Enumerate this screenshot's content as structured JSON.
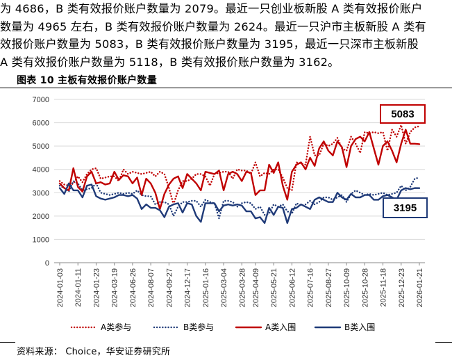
{
  "paragraph": {
    "lines": [
      "为 4686，B 类有效报价账户数量为 2079。最近一只创业板新股 A 类有效报价账户",
      "数量为 4965 左右，B 类有效报价账户数量为 2624。最近一只沪市主板新股 A 类有",
      "效报价账户数量为 5083，B 类有效报价账户数量为 3195，最近一只深市主板新股",
      "A 类有效报价账户数量为 5118，B 类有效报价账户数量为 3162。"
    ]
  },
  "figure": {
    "title": "图表 10 主板有效报价账户数量",
    "source": "资料来源： Choice，华安证券研究所"
  },
  "chart_data": {
    "type": "line",
    "ylim": [
      0,
      7000
    ],
    "yticks": [
      0,
      1000,
      2000,
      3000,
      4000,
      5000,
      6000,
      7000
    ],
    "xtick_labels": [
      "2024-01-03",
      "2024-01-11",
      "2024-01-23",
      "2024-03-19",
      "2024-06-26",
      "2024-08-07",
      "2024-09-27",
      "2024-12-17",
      "2025-01-16",
      "2025-03-04",
      "2025-03-28",
      "2025-04-09",
      "2025-05-21",
      "2025-06-12",
      "2025-07-16",
      "2025-08-27",
      "2025-10-09",
      "2025-10-28",
      "2025-11-18",
      "2025-12-23",
      "2026-01-21"
    ],
    "point_count": 80,
    "legend": [
      "A类参与",
      "B类参与",
      "A类入围",
      "B类入围"
    ],
    "legend_position": "bottom",
    "colors": {
      "a_series": "#C00000",
      "b_series": "#1F3A78"
    },
    "series": [
      {
        "name": "A类参与",
        "style": "dotted",
        "color": "#C00000",
        "values": [
          3500,
          3350,
          3300,
          3400,
          3700,
          3450,
          3800,
          4000,
          4050,
          3600,
          3650,
          3700,
          3700,
          3500,
          4000,
          3800,
          3900,
          3850,
          3800,
          3850,
          3900,
          3700,
          3900,
          3800,
          3200,
          2500,
          3100,
          3500,
          3500,
          3600,
          3800,
          3800,
          3700,
          3300,
          3800,
          3850,
          3900,
          3900,
          3600,
          4000,
          3950,
          3950,
          3800,
          4300,
          3700,
          3850,
          3800,
          4000,
          4000,
          3650,
          3200,
          3100,
          4300,
          4250,
          4200,
          5400,
          4600,
          4600,
          5100,
          5000,
          5100,
          5350,
          4900,
          4800,
          5400,
          5100,
          4700,
          5600,
          5550,
          5600,
          5550,
          5600,
          4800,
          5700,
          5400,
          5900,
          5100,
          5600,
          5800,
          5850
        ]
      },
      {
        "name": "B类参与",
        "style": "dotted",
        "color": "#1F3A78",
        "values": [
          3300,
          3200,
          3050,
          3500,
          3400,
          3100,
          3150,
          3200,
          3400,
          3000,
          2950,
          2900,
          2950,
          3000,
          2950,
          3000,
          2950,
          3100,
          2900,
          2850,
          2850,
          2500,
          2600,
          2600,
          2500,
          2000,
          2400,
          2600,
          2600,
          2650,
          2650,
          2400,
          2700,
          2600,
          2550,
          1900,
          2650,
          2650,
          2600,
          2400,
          2550,
          2600,
          2550,
          2300,
          2400,
          2050,
          2100,
          2500,
          2400,
          2500,
          2200,
          2100,
          2550,
          2450,
          2500,
          2650,
          2500,
          2600,
          2800,
          2800,
          2700,
          2800,
          2900,
          2600,
          2950,
          3100,
          3000,
          2900,
          2950,
          2900,
          2950,
          3000,
          2900,
          2950,
          3000,
          3300,
          3100,
          3250,
          3600,
          3650
        ]
      },
      {
        "name": "A类入围",
        "style": "solid",
        "color": "#C00000",
        "values": [
          3400,
          3200,
          3100,
          4050,
          3250,
          3050,
          3700,
          3900,
          3400,
          3450,
          3350,
          3400,
          3900,
          3550,
          3750,
          3700,
          3400,
          3650,
          2900,
          3600,
          3400,
          3000,
          2300,
          2950,
          3350,
          3600,
          3700,
          3200,
          3800,
          3600,
          3400,
          3100,
          3900,
          3850,
          3800,
          3950,
          3100,
          3800,
          3900,
          3800,
          3500,
          3900,
          3850,
          2900,
          3100,
          3100,
          4200,
          3850,
          4300,
          3300,
          2700,
          3900,
          4200,
          4300,
          4000,
          4500,
          4150,
          4900,
          5200,
          4800,
          4600,
          5200,
          4950,
          4100,
          5000,
          5300,
          5400,
          5200,
          5600,
          4900,
          4200,
          5000,
          5200,
          4800,
          4300,
          5100,
          5700,
          5100,
          5100,
          5083
        ]
      },
      {
        "name": "B类入围",
        "style": "solid",
        "color": "#1F3A78",
        "values": [
          3200,
          2950,
          3400,
          3100,
          3100,
          2800,
          3300,
          3350,
          2850,
          2750,
          2700,
          2750,
          2800,
          2900,
          2900,
          2850,
          2900,
          2750,
          2300,
          2500,
          2350,
          2350,
          2250,
          1950,
          2400,
          2500,
          2550,
          2150,
          2550,
          2500,
          2000,
          1750,
          2550,
          2550,
          2550,
          2200,
          2450,
          2500,
          2450,
          2500,
          2450,
          2200,
          2200,
          1900,
          1950,
          1700,
          2350,
          2050,
          2400,
          2350,
          1700,
          2300,
          2350,
          2500,
          2400,
          2300,
          2700,
          2800,
          2700,
          2600,
          2600,
          3000,
          2800,
          2700,
          2950,
          2800,
          2800,
          2900,
          2900,
          2700,
          2700,
          2850,
          2900,
          2800,
          2700,
          3100,
          3200,
          3150,
          3200,
          3195
        ]
      }
    ],
    "callouts": [
      {
        "text": "5083",
        "series": "A类入围",
        "color": "#C00000"
      },
      {
        "text": "3195",
        "series": "B类入围",
        "color": "#1F3A78"
      }
    ]
  }
}
